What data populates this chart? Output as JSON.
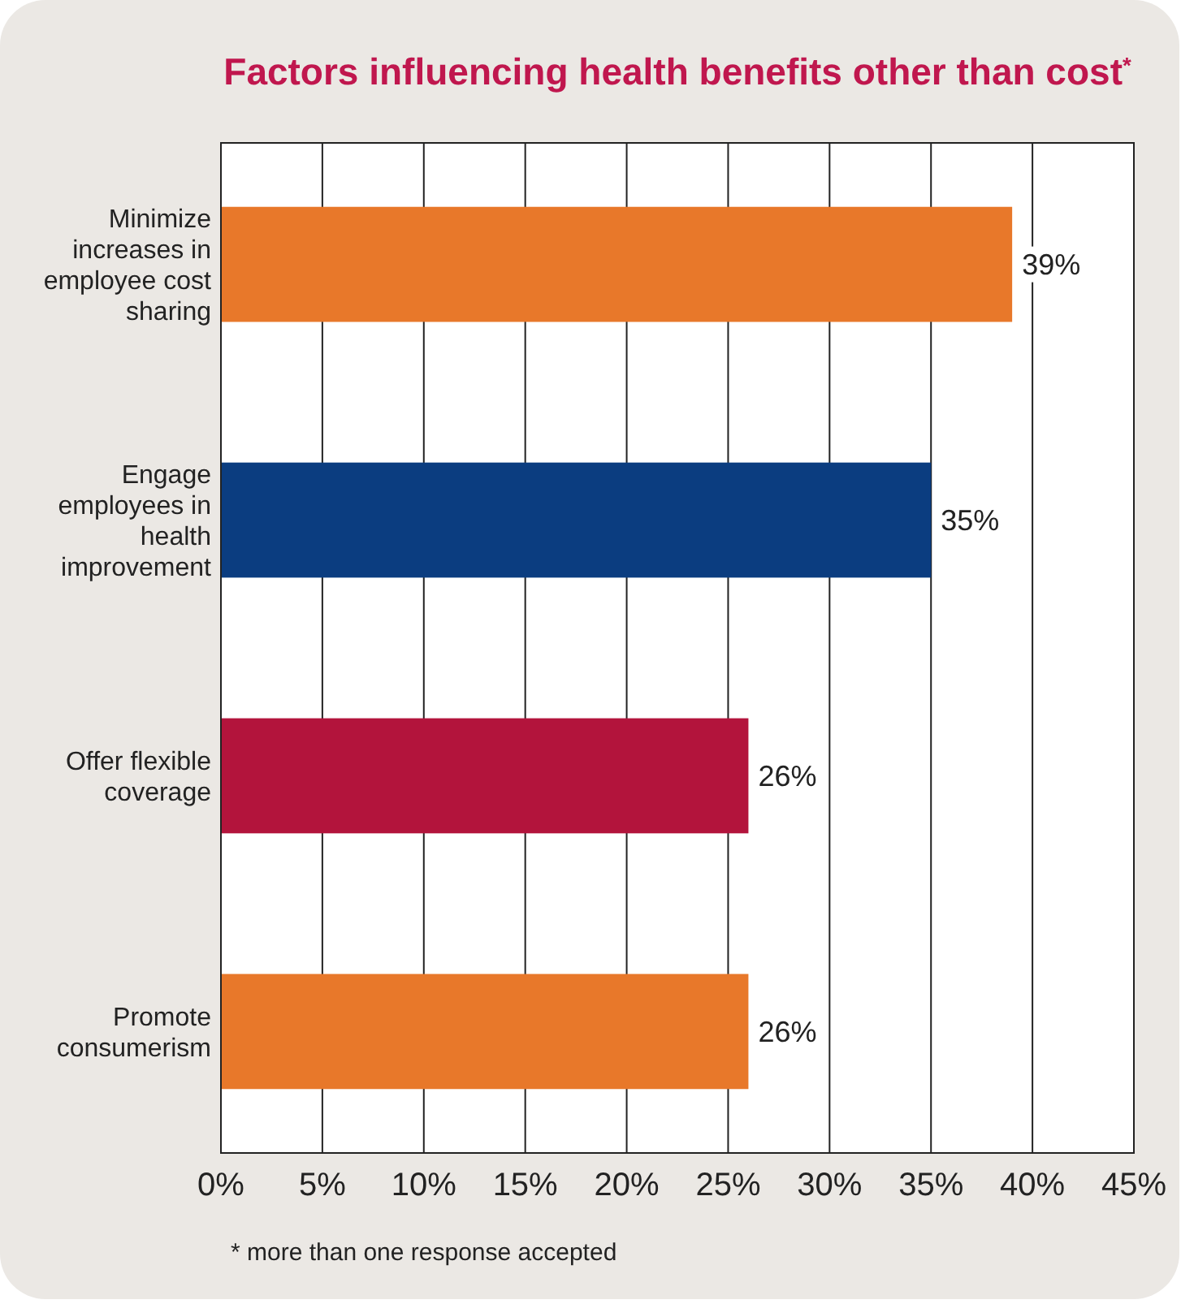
{
  "chart_data": {
    "type": "bar",
    "orientation": "horizontal",
    "title": "Factors influencing health benefits other than cost$^{*}$",
    "categories": [
      "Minimize increases in employee cost sharing",
      "Engage employees in health improvement",
      "Offer flexible coverage",
      "Promote consumerism"
    ],
    "values": [
      39,
      35,
      26,
      26
    ],
    "colors": [
      "#e8782a",
      "#0b3d80",
      "#b3143c",
      "#e8782a"
    ],
    "xlim": [
      0,
      45
    ],
    "xticks": [
      {
        "value": 0,
        "label": "0%"
      },
      {
        "value": 5,
        "label": "5%"
      },
      {
        "value": 10,
        "label": "10%"
      },
      {
        "value": 15,
        "label": "15%"
      },
      {
        "value": 20,
        "label": "20%"
      },
      {
        "value": 25,
        "label": "25%"
      },
      {
        "value": 30,
        "label": "30%"
      },
      {
        "value": 35,
        "label": "35%"
      },
      {
        "value": 40,
        "label": "40%"
      },
      {
        "value": 45,
        "label": "45%"
      }
    ],
    "value_labels": [
      "39%",
      "35%",
      "26%",
      "26%"
    ],
    "grid": "x",
    "annotations": [
      "* more than one response accepted"
    ]
  }
}
